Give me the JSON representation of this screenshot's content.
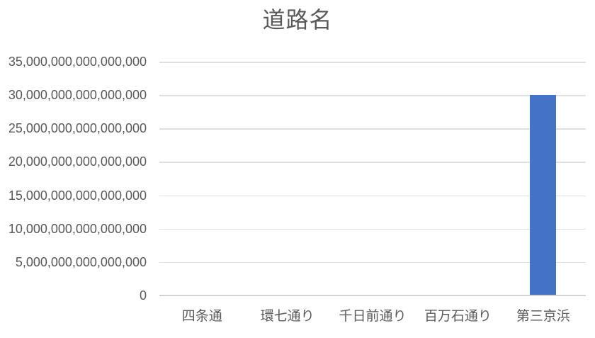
{
  "chart_data": {
    "type": "bar",
    "title": "道路名",
    "categories": [
      "四条通",
      "環七通り",
      "千日前通り",
      "百万石通り",
      "第三京浜"
    ],
    "values": [
      0,
      0,
      0,
      0,
      30000000000000000
    ],
    "xlabel": "",
    "ylabel": "",
    "ylim": [
      0,
      35000000000000000
    ],
    "ytick_interval": 5000000000000000,
    "yticks": [
      0,
      5000000000000000,
      10000000000000000,
      15000000000000000,
      20000000000000000,
      25000000000000000,
      30000000000000000,
      35000000000000000
    ],
    "ytick_labels": [
      "0",
      "5,000,000,000,000,000",
      "10,000,000,000,000,000",
      "15,000,000,000,000,000",
      "20,000,000,000,000,000",
      "25,000,000,000,000,000",
      "30,000,000,000,000,000",
      "35,000,000,000,000,000"
    ],
    "grid": true,
    "legend": false,
    "colors": {
      "bar": "#4472C4",
      "text": "#595959",
      "gridline": "#E0E0E0",
      "axis_line": "#D2D2D2",
      "background": "#FFFFFF"
    }
  }
}
